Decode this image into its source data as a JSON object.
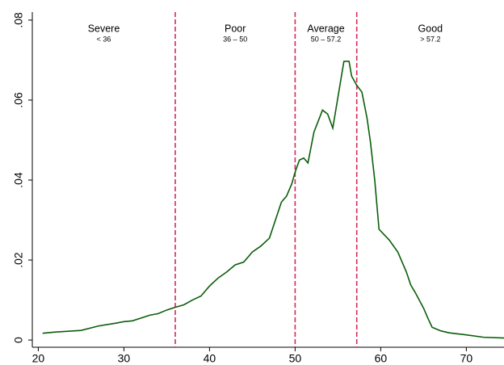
{
  "chart_data": {
    "type": "line",
    "x": [
      20.5,
      22,
      25,
      27,
      29,
      30,
      31,
      32,
      33,
      34,
      35,
      36,
      37,
      38,
      39,
      40,
      41,
      42,
      43,
      44,
      45,
      46,
      47,
      48.4,
      49,
      49.6,
      50,
      50.5,
      51,
      51.5,
      52.2,
      53.2,
      53.8,
      54.4,
      55.7,
      56.3,
      56.6,
      57.2,
      57.8,
      58.4,
      58.8,
      59.3,
      59.8,
      61,
      62,
      63,
      63.5,
      64,
      65,
      65.5,
      66,
      67,
      68,
      70,
      72,
      74.4
    ],
    "series": [
      {
        "color": "#0b5e0b",
        "values": [
          0.0017,
          0.002,
          0.0024,
          0.0035,
          0.0042,
          0.0046,
          0.0048,
          0.0055,
          0.0062,
          0.0066,
          0.0075,
          0.0082,
          0.0088,
          0.01,
          0.011,
          0.0135,
          0.0155,
          0.017,
          0.0188,
          0.0195,
          0.022,
          0.0235,
          0.0255,
          0.0345,
          0.036,
          0.039,
          0.042,
          0.045,
          0.0455,
          0.0443,
          0.052,
          0.0575,
          0.0565,
          0.053,
          0.0697,
          0.0697,
          0.066,
          0.0637,
          0.062,
          0.0555,
          0.0495,
          0.04,
          0.0277,
          0.025,
          0.022,
          0.017,
          0.0138,
          0.012,
          0.008,
          0.0055,
          0.0032,
          0.0023,
          0.0018,
          0.0013,
          0.0007,
          0.0005
        ]
      }
    ],
    "xlim": [
      19.3,
      74.4
    ],
    "ylim": [
      -0.0018,
      0.082
    ],
    "xticks": [
      20,
      30,
      40,
      50,
      60,
      70
    ],
    "yticks": [
      0,
      {
        "value": 0.02,
        "label": ".02"
      },
      {
        "value": 0.04,
        "label": ".04"
      },
      {
        "value": 0.06,
        "label": ".06"
      },
      {
        "value": 0.08,
        "label": ".08"
      }
    ],
    "cutoffs": [
      36,
      50,
      57.2
    ],
    "cutoff_color": "#d62a5a",
    "regions": [
      {
        "name": "Severe",
        "range": "< 36"
      },
      {
        "name": "Poor",
        "range": "36 – 50"
      },
      {
        "name": "Average",
        "range": "50 – 57.2"
      },
      {
        "name": "Good",
        "range": "> 57.2"
      }
    ]
  }
}
